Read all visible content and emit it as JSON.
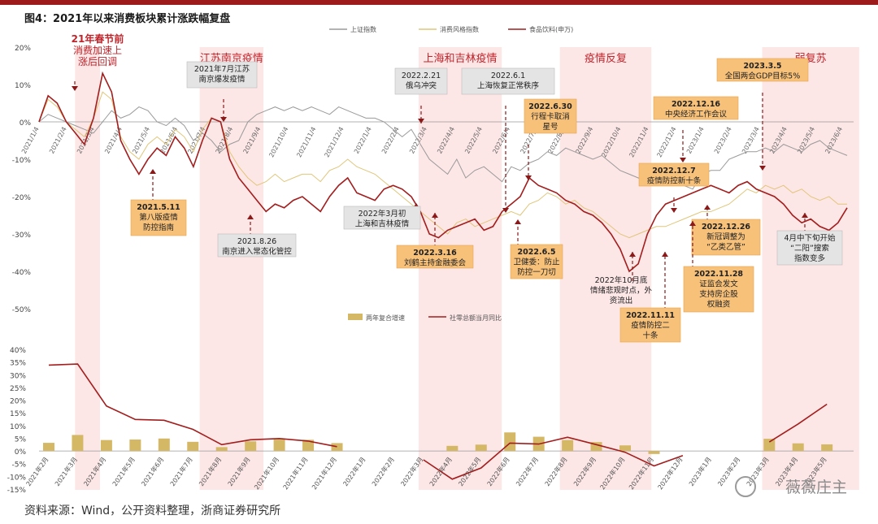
{
  "figure": {
    "title": "图4：2021年以来消费板块累计涨跌幅复盘",
    "source": "资料来源：Wind，公开资料整理，浙商证券研究所",
    "watermark": "薇薇庄主"
  },
  "colors": {
    "shade": "#fde6e6",
    "index_gray": "#9a9a9a",
    "consumer_style": "#e0c67a",
    "food_bev": "#a31d1d",
    "bar": "#d5b866",
    "red_text": "#c0242b",
    "callout_orange": "#f7c17a",
    "callout_gray": "#e4e4e4"
  },
  "chart_data": [
    {
      "type": "line",
      "title": "",
      "ylim": [
        -50,
        20
      ],
      "yticks": [
        "20%",
        "10%",
        "0%",
        "-10%",
        "-20%",
        "-30%",
        "-40%",
        "-50%"
      ],
      "xticks": [
        "2021/1/4",
        "2021/2/4",
        "2021/3/4",
        "2021/4/4",
        "2021/5/4",
        "2021/6/4",
        "2021/7/4",
        "2021/8/4",
        "2021/9/4",
        "2021/10/4",
        "2021/11/4",
        "2021/12/4",
        "2022/1/4",
        "2022/2/4",
        "2022/3/4",
        "2022/4/4",
        "2022/5/4",
        "2022/6/4",
        "2022/7/4",
        "2022/8/4",
        "2022/9/4",
        "2022/10/4",
        "2022/11/4",
        "2022/12/4",
        "2023/1/4",
        "2023/2/4",
        "2023/3/4",
        "2023/4/4",
        "2023/5/4",
        "2023/6/4"
      ],
      "legend": [
        "上证指数",
        "消费风格指数",
        "食品饮料(申万)"
      ],
      "legend_position": "top",
      "series": [
        {
          "name": "上证指数",
          "values": [
            0,
            2,
            1,
            0,
            -1,
            -2,
            -3,
            0,
            3,
            1,
            2,
            4,
            3,
            0,
            -1,
            1,
            -1,
            -5,
            -3,
            -5,
            -8,
            -6,
            -5,
            0,
            2,
            3,
            4,
            3,
            4,
            3,
            4,
            3,
            2,
            4,
            3,
            2,
            1,
            1,
            0,
            -2,
            -4,
            -2,
            -6,
            -10,
            -12,
            -14,
            -10,
            -15,
            -13,
            -12,
            -14,
            -16,
            -12,
            -13,
            -11,
            -10,
            -8,
            -9,
            -7,
            -8,
            -9,
            -10,
            -9,
            -11,
            -13,
            -14,
            -15,
            -16,
            -17,
            -15,
            -13,
            -17,
            -18,
            -14,
            -13,
            -13,
            -10,
            -9,
            -8,
            -8,
            -7,
            -8,
            -6,
            -7,
            -8,
            -6,
            -5,
            -7,
            -8,
            -9
          ]
        },
        {
          "name": "消费风格指数",
          "values": [
            0,
            6,
            4,
            0,
            -2,
            -4,
            1,
            8,
            6,
            -4,
            -8,
            -10,
            -6,
            -4,
            -6,
            -2,
            -4,
            -8,
            -2,
            1,
            0,
            -8,
            -12,
            -15,
            -17,
            -16,
            -14,
            -16,
            -15,
            -14,
            -14,
            -16,
            -13,
            -12,
            -10,
            -12,
            -13,
            -14,
            -16,
            -18,
            -20,
            -22,
            -24,
            -26,
            -28,
            -30,
            -27,
            -26,
            -28,
            -27,
            -26,
            -25,
            -24,
            -25,
            -22,
            -21,
            -19,
            -20,
            -22,
            -21,
            -23,
            -24,
            -26,
            -28,
            -30,
            -31,
            -30,
            -29,
            -28,
            -28,
            -27,
            -26,
            -25,
            -24,
            -24,
            -23,
            -22,
            -20,
            -18,
            -19,
            -17,
            -18,
            -17,
            -19,
            -18,
            -20,
            -21,
            -20,
            -22,
            -22
          ]
        },
        {
          "name": "食品饮料(申万)",
          "values": [
            0,
            7,
            5,
            0,
            -3,
            -6,
            1,
            13,
            8,
            -5,
            -10,
            -14,
            -10,
            -7,
            -9,
            -4,
            -7,
            -12,
            -5,
            1,
            0,
            -10,
            -15,
            -18,
            -21,
            -24,
            -22,
            -23,
            -21,
            -20,
            -22,
            -24,
            -20,
            -17,
            -15,
            -19,
            -20,
            -21,
            -18,
            -17,
            -18,
            -20,
            -24,
            -30,
            -31,
            -29,
            -28,
            -27,
            -26,
            -29,
            -28,
            -24,
            -22,
            -20,
            -15,
            -17,
            -18,
            -19,
            -21,
            -22,
            -24,
            -25,
            -27,
            -30,
            -34,
            -40,
            -38,
            -30,
            -25,
            -22,
            -21,
            -20,
            -19,
            -18,
            -17,
            -18,
            -19,
            -17,
            -16,
            -18,
            -19,
            -20,
            -22,
            -25,
            -27,
            -26,
            -28,
            -29,
            -27,
            -23
          ]
        }
      ],
      "shaded_periods": [
        {
          "label": "",
          "start": 1.3,
          "end": 2.2
        },
        {
          "label": "江苏南京疫情",
          "start": 5.8,
          "end": 8.1
        },
        {
          "label": "上海和吉林疫情",
          "start": 13.7,
          "end": 16.7
        },
        {
          "label": "疫情反复",
          "start": 18.8,
          "end": 22.1
        },
        {
          "label": "弱复苏",
          "start": 26.1,
          "end": 29.6
        }
      ],
      "annotations": [
        {
          "text": [
            "21年春节前",
            "消费加速上",
            "涨后回调"
          ],
          "style": "red"
        },
        {
          "text": [
            "2021年7月江苏",
            "南京爆发疫情"
          ],
          "style": "gray"
        },
        {
          "text": [
            "2022.2.21",
            "俄乌冲突"
          ],
          "style": "gray"
        },
        {
          "text": [
            "2022.6.1",
            "上海恢复正常秩序"
          ],
          "style": "gray"
        },
        {
          "text": [
            "2022.6.30",
            "行程卡取消",
            "星号"
          ],
          "style": "orange"
        },
        {
          "text": [
            "2022.12.16",
            "中央经济工作会议"
          ],
          "style": "orange"
        },
        {
          "text": [
            "2023.3.5",
            "全国两会GDP目标5%"
          ],
          "style": "orange"
        },
        {
          "text": [
            "2022.12.7",
            "疫情防控新十条"
          ],
          "style": "orange"
        },
        {
          "text": [
            "2021.5.11",
            "第八版疫情",
            "防控指南"
          ],
          "style": "orange"
        },
        {
          "text": [
            "2022年3月初",
            "上海和吉林疫情"
          ],
          "style": "gray"
        },
        {
          "text": [
            "2021.8.26",
            "南京进入常态化管控"
          ],
          "style": "gray"
        },
        {
          "text": [
            "2022.3.16",
            "刘鹤主持金融委会"
          ],
          "style": "orange"
        },
        {
          "text": [
            "2022.6.5",
            "卫健委：防止",
            "防控一刀切"
          ],
          "style": "orange"
        },
        {
          "text": [
            "2022年10月底",
            "情绪悲观时点，外",
            "资流出"
          ],
          "style": "plain"
        },
        {
          "text": [
            "2022.12.26",
            "新冠调整为",
            "“乙类乙管”"
          ],
          "style": "orange"
        },
        {
          "text": [
            "4月中下旬开始",
            "“二阳”搜索",
            "指数变多"
          ],
          "style": "gray"
        },
        {
          "text": [
            "2022.11.28",
            "证监会发文",
            "支持房企股",
            "权融资"
          ],
          "style": "orange"
        },
        {
          "text": [
            "2022.11.11",
            "疫情防控二",
            "十条"
          ],
          "style": "orange"
        }
      ]
    },
    {
      "type": "bar",
      "title": "",
      "ylim": [
        -15,
        40
      ],
      "yticks": [
        "40%",
        "35%",
        "30%",
        "25%",
        "20%",
        "15%",
        "10%",
        "5%",
        "0%",
        "-5%",
        "-10%",
        "-15%"
      ],
      "categories": [
        "2021年2月",
        "2021年3月",
        "2021年4月",
        "2021年5月",
        "2021年6月",
        "2021年7月",
        "2021年8月",
        "2021年9月",
        "2021年10月",
        "2021年11月",
        "2021年12月",
        "2022年1月",
        "2022年2月",
        "2022年3月",
        "2022年4月",
        "2022年5月",
        "2022年6月",
        "2022年7月",
        "2022年8月",
        "2022年9月",
        "2022年10月",
        "2022年11月",
        "2022年12月",
        "2023年1月",
        "2023年2月",
        "2023年3月",
        "2023年4月",
        "2023年5月"
      ],
      "legend": [
        "两年复合增速",
        "社零总额当月同比"
      ],
      "legend_position": "top",
      "series": [
        {
          "name": "两年复合增速",
          "type": "bar",
          "values": [
            3.2,
            6.3,
            4.3,
            4.5,
            4.9,
            3.6,
            1.5,
            3.8,
            4.6,
            4.4,
            3.1,
            null,
            null,
            null,
            2.0,
            2.5,
            7.3,
            5.6,
            4.3,
            3.5,
            2.2,
            -1.2,
            null,
            null,
            null,
            4.8,
            3.0,
            2.6
          ]
        },
        {
          "name": "社零总额当月同比",
          "type": "line",
          "values": [
            33.8,
            34.2,
            17.7,
            12.4,
            12.1,
            8.5,
            2.5,
            4.4,
            4.9,
            3.9,
            1.7,
            null,
            null,
            -3.5,
            -11.1,
            -6.7,
            3.1,
            2.7,
            5.4,
            2.5,
            -0.5,
            -5.9,
            -1.8,
            null,
            null,
            3.5,
            10.6,
            18.4
          ]
        }
      ]
    }
  ]
}
